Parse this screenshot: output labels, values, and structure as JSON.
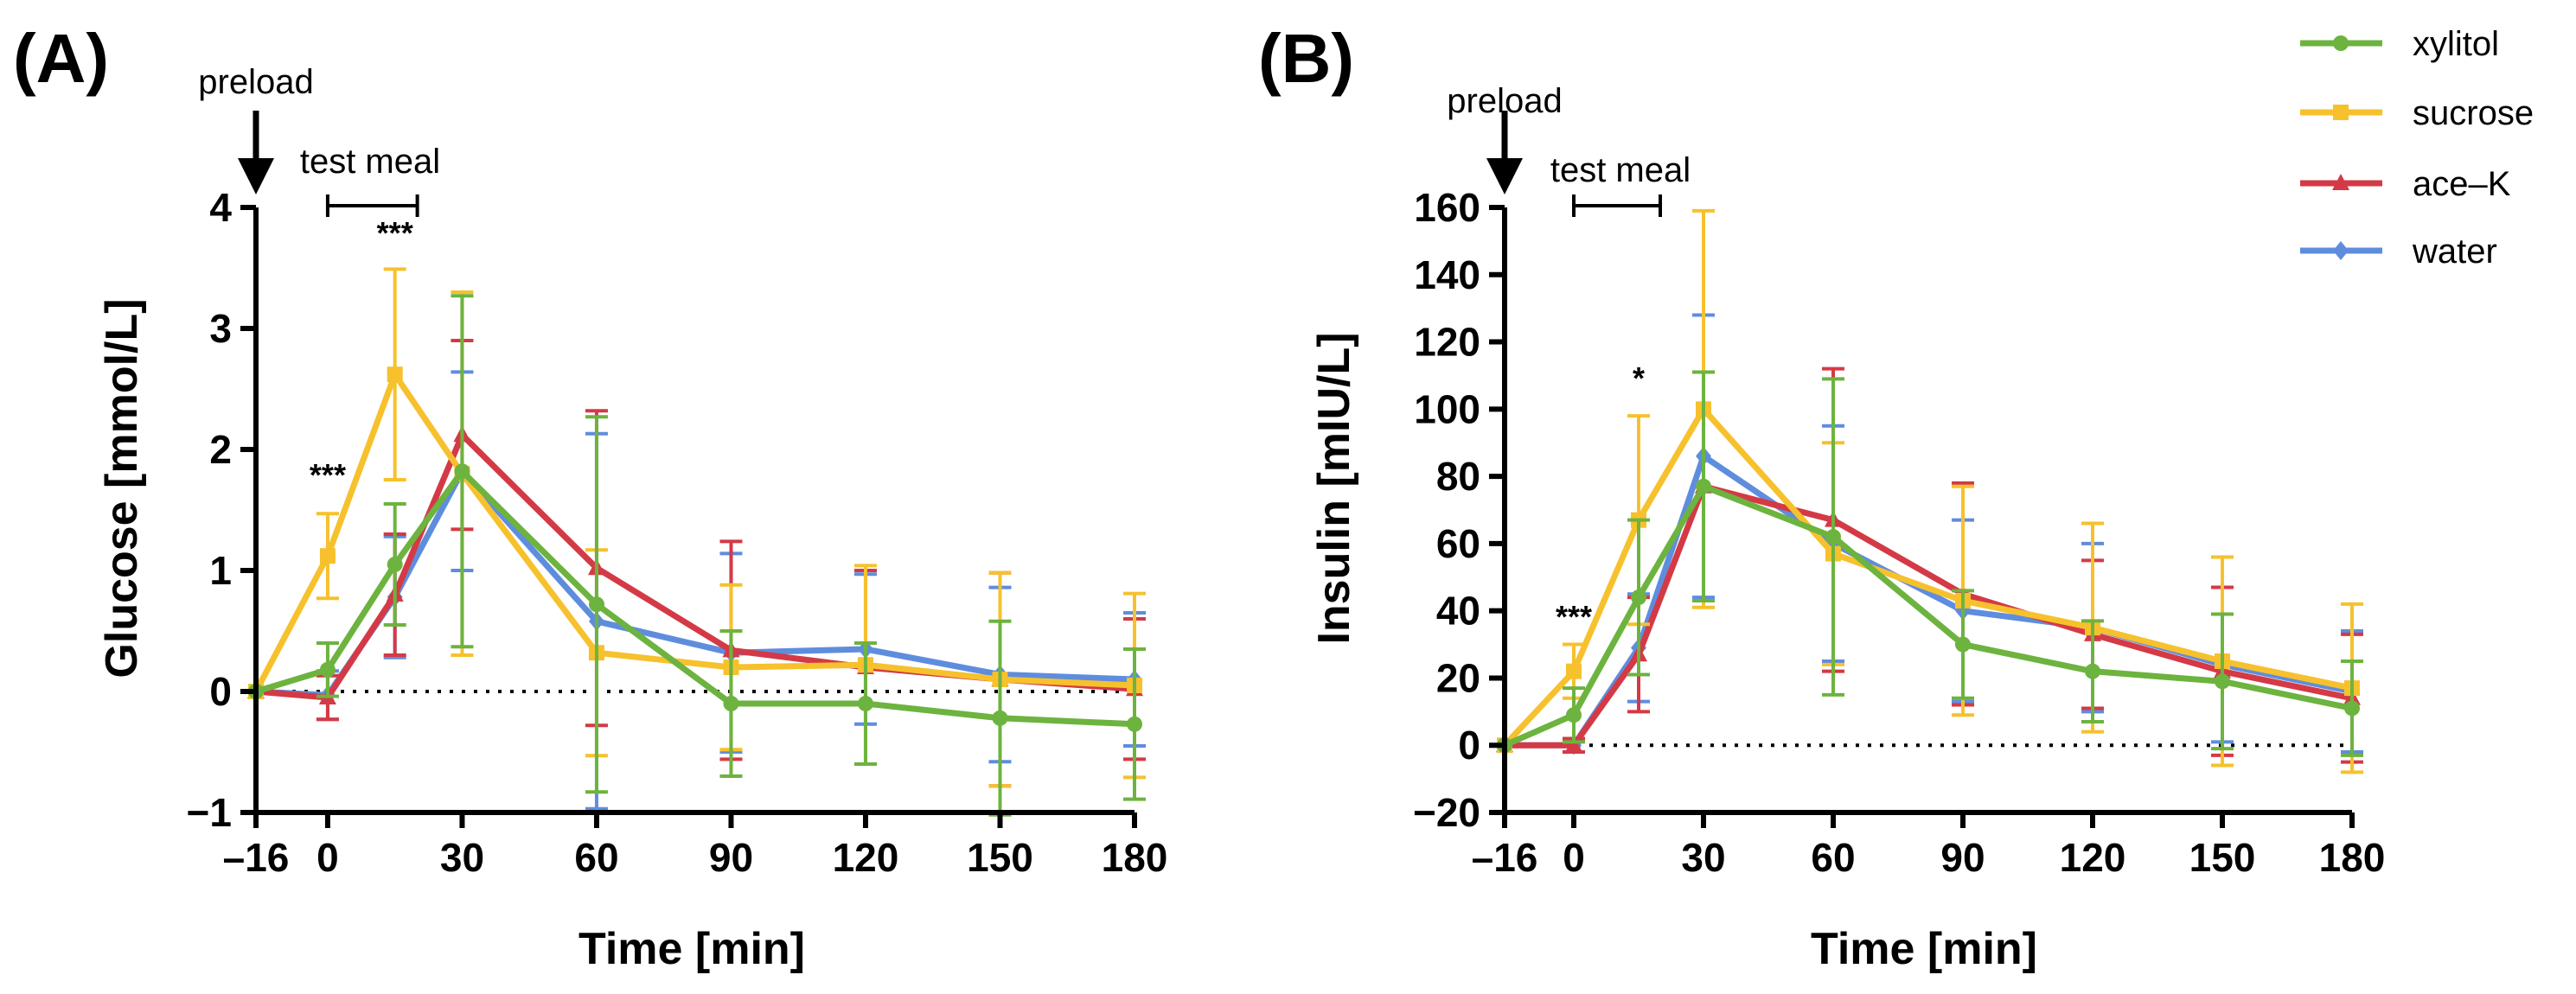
{
  "legend": {
    "items": [
      {
        "name": "xylitol",
        "color": "#6db33f",
        "marker": "circle"
      },
      {
        "name": "sucrose",
        "color": "#f6c12d",
        "marker": "square"
      },
      {
        "name": "ace–K",
        "color": "#d33a45",
        "marker": "triangle"
      },
      {
        "name": "water",
        "color": "#5f8dde",
        "marker": "diamond"
      }
    ]
  },
  "chart_data": [
    {
      "type": "line",
      "panel_label": "(A)",
      "ylabel": "Glucose [mmol/L]",
      "xlabel": "Time [min]",
      "x": [
        -16,
        0,
        15,
        30,
        60,
        90,
        120,
        150,
        180
      ],
      "x_ticks": [
        -16,
        0,
        30,
        60,
        90,
        120,
        150,
        180
      ],
      "x_tick_labels": [
        "–16",
        "0",
        "30",
        "60",
        "90",
        "120",
        "150",
        "180"
      ],
      "y_ticks": [
        -1,
        0,
        1,
        2,
        3,
        4
      ],
      "y_tick_labels": [
        "−1",
        "0",
        "1",
        "2",
        "3",
        "4"
      ],
      "xlim": [
        -16,
        180
      ],
      "ylim": [
        -1,
        4
      ],
      "zero_line": true,
      "annotations": {
        "preload": "preload",
        "test_meal": "test meal",
        "test_meal_range": [
          0,
          20
        ],
        "significance": [
          {
            "x": 0,
            "y": 1.7,
            "text": "***"
          },
          {
            "x": 15,
            "y": 3.7,
            "text": "***"
          }
        ]
      },
      "series": [
        {
          "name": "xylitol",
          "values": [
            0,
            0.18,
            1.05,
            1.82,
            0.72,
            -0.1,
            -0.1,
            -0.22,
            -0.27
          ],
          "err": [
            0,
            0.22,
            0.5,
            1.45,
            1.55,
            0.6,
            0.5,
            0.8,
            0.62
          ]
        },
        {
          "name": "sucrose",
          "values": [
            0,
            1.12,
            2.62,
            1.8,
            0.32,
            0.2,
            0.22,
            0.1,
            0.05
          ],
          "err": [
            0,
            0.35,
            0.87,
            1.5,
            0.85,
            0.68,
            0.82,
            0.88,
            0.76
          ]
        },
        {
          "name": "ace–K",
          "values": [
            0,
            -0.05,
            0.8,
            2.12,
            1.02,
            0.34,
            0.2,
            0.1,
            0.02
          ],
          "err": [
            0,
            0.18,
            0.5,
            0.78,
            1.3,
            0.9,
            0.8,
            0.88,
            0.58
          ]
        },
        {
          "name": "water",
          "values": [
            0,
            -0.03,
            0.78,
            1.82,
            0.58,
            0.32,
            0.35,
            0.14,
            0.1
          ],
          "err": [
            0,
            0.2,
            0.5,
            0.82,
            1.55,
            0.82,
            0.62,
            0.72,
            0.55
          ]
        }
      ]
    },
    {
      "type": "line",
      "panel_label": "(B)",
      "ylabel": "Insulin [mIU/L]",
      "xlabel": "Time [min]",
      "x": [
        -16,
        0,
        15,
        30,
        60,
        90,
        120,
        150,
        180
      ],
      "x_ticks": [
        -16,
        0,
        30,
        60,
        90,
        120,
        150,
        180
      ],
      "x_tick_labels": [
        "–16",
        "0",
        "30",
        "60",
        "90",
        "120",
        "150",
        "180"
      ],
      "y_ticks": [
        -20,
        0,
        20,
        40,
        60,
        80,
        100,
        120,
        140,
        160
      ],
      "y_tick_labels": [
        "−20",
        "0",
        "20",
        "40",
        "60",
        "80",
        "100",
        "120",
        "140",
        "160"
      ],
      "xlim": [
        -16,
        180
      ],
      "ylim": [
        -20,
        160
      ],
      "zero_line": true,
      "annotations": {
        "preload": "preload",
        "test_meal": "test meal",
        "test_meal_range": [
          0,
          20
        ],
        "significance": [
          {
            "x": 0,
            "y": 35,
            "text": "***"
          },
          {
            "x": 15,
            "y": 106,
            "text": "*"
          }
        ]
      },
      "series": [
        {
          "name": "xylitol",
          "values": [
            0,
            9,
            44,
            77,
            62,
            30,
            22,
            19,
            11
          ],
          "err": [
            0,
            8,
            23,
            34,
            47,
            16,
            15,
            20,
            14
          ]
        },
        {
          "name": "sucrose",
          "values": [
            0,
            22,
            67,
            100,
            57,
            43,
            35,
            25,
            17
          ],
          "err": [
            0,
            8,
            31,
            59,
            33,
            34,
            31,
            31,
            25
          ]
        },
        {
          "name": "ace–K",
          "values": [
            0,
            0,
            27,
            77,
            67,
            45,
            33,
            22,
            14
          ],
          "err": [
            0,
            2,
            17,
            34,
            45,
            33,
            22,
            25,
            19
          ]
        },
        {
          "name": "water",
          "values": [
            0,
            0,
            29,
            86,
            60,
            40,
            35,
            24,
            16
          ],
          "err": [
            0,
            2,
            16,
            42,
            35,
            27,
            25,
            23,
            18
          ]
        }
      ]
    }
  ]
}
